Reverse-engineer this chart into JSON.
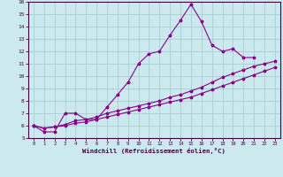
{
  "xlabel": "Windchill (Refroidissement éolien,°C)",
  "background_color": "#cce9f0",
  "grid_color": "#aacfcf",
  "line_color": "#880088",
  "ylim": [
    5,
    16
  ],
  "xlim": [
    -0.5,
    23.5
  ],
  "yticks": [
    5,
    6,
    7,
    8,
    9,
    10,
    11,
    12,
    13,
    14,
    15,
    16
  ],
  "xticks": [
    0,
    1,
    2,
    3,
    4,
    5,
    6,
    7,
    8,
    9,
    10,
    11,
    12,
    13,
    14,
    15,
    16,
    17,
    18,
    19,
    20,
    21,
    22,
    23
  ],
  "line_main_x": [
    0,
    1,
    2,
    3,
    4,
    5,
    6,
    7,
    8,
    9,
    10,
    11,
    12,
    13,
    14,
    15,
    16,
    17,
    18,
    19,
    20,
    21
  ],
  "line_main_y": [
    6.0,
    5.5,
    5.5,
    7.0,
    7.0,
    6.5,
    6.5,
    7.5,
    8.5,
    9.5,
    11.0,
    11.8,
    12.0,
    13.3,
    14.5,
    15.8,
    14.4,
    12.5,
    12.0,
    12.2,
    11.5,
    11.5
  ],
  "line_mid_x": [
    0,
    1,
    2,
    3,
    4,
    5,
    6,
    7,
    8,
    9,
    10,
    11,
    12,
    13,
    14,
    15,
    16,
    17,
    18,
    19,
    20,
    21,
    22,
    23
  ],
  "line_mid_y": [
    6.0,
    5.8,
    5.9,
    6.1,
    6.4,
    6.5,
    6.7,
    7.0,
    7.2,
    7.4,
    7.6,
    7.8,
    8.0,
    8.3,
    8.5,
    8.8,
    9.1,
    9.5,
    9.9,
    10.2,
    10.5,
    10.8,
    11.0,
    11.2
  ],
  "line_low_x": [
    0,
    1,
    2,
    3,
    4,
    5,
    6,
    7,
    8,
    9,
    10,
    11,
    12,
    13,
    14,
    15,
    16,
    17,
    18,
    19,
    20,
    21,
    22,
    23
  ],
  "line_low_y": [
    6.0,
    5.8,
    5.9,
    6.0,
    6.2,
    6.3,
    6.5,
    6.7,
    6.9,
    7.1,
    7.3,
    7.5,
    7.7,
    7.9,
    8.1,
    8.3,
    8.6,
    8.9,
    9.2,
    9.5,
    9.8,
    10.1,
    10.4,
    10.7
  ]
}
